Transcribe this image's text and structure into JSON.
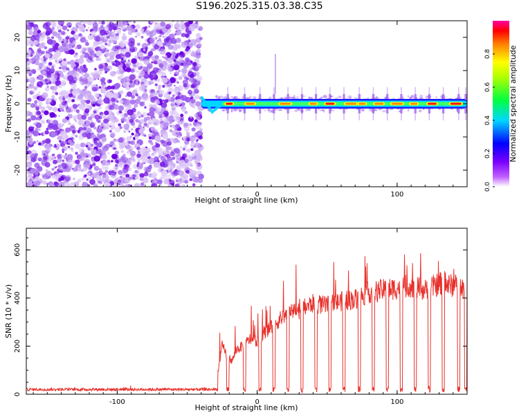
{
  "figure_title": "S196.2025.315.03.38.C35",
  "chart_data": [
    {
      "type": "heatmap",
      "title": "S196.2025.315.03.38.C35",
      "xlabel": "Height of straight line (km)",
      "ylabel": "Frequency (Hz)",
      "xlim": [
        -165,
        150
      ],
      "ylim": [
        -25,
        25
      ],
      "x_ticks": [
        -100,
        0,
        100
      ],
      "y_ticks": [
        -20,
        -10,
        0,
        10,
        20
      ],
      "noise_region_x": [
        -165,
        -40
      ],
      "signal_track_freq_hz": 0,
      "signal_onset_km": -40,
      "colorbar": {
        "label": "Normalized spectral amplitude",
        "range": [
          0,
          1
        ],
        "ticks": [
          0.0,
          0.2,
          0.4,
          0.6,
          0.8
        ],
        "colors": [
          "#ffffff",
          "#7a00ff",
          "#0000ff",
          "#00ffff",
          "#00ff00",
          "#ffff00",
          "#ff7f00",
          "#ff0000",
          "#ff00b0"
        ]
      }
    },
    {
      "type": "line",
      "xlabel": "Height of straight line (km)",
      "ylabel": "SNR (10 * v/v)",
      "xlim": [
        -165,
        150
      ],
      "ylim": [
        0,
        690
      ],
      "x_ticks": [
        -100,
        0,
        100
      ],
      "y_ticks": [
        0,
        200,
        400,
        600
      ],
      "color": "#e8302a",
      "noise_floor_before_km": -28,
      "noise_level": 20,
      "series": [
        {
          "name": "SNR",
          "x": [
            -165,
            -140,
            -120,
            -100,
            -80,
            -60,
            -40,
            -30,
            -25,
            -22,
            -18,
            -15,
            -10,
            -5,
            0,
            5,
            10,
            15,
            20,
            30,
            40,
            50,
            60,
            70,
            80,
            90,
            100,
            110,
            120,
            130,
            140,
            150
          ],
          "values": [
            20,
            22,
            20,
            21,
            20,
            22,
            20,
            25,
            220,
            180,
            150,
            200,
            220,
            250,
            240,
            280,
            300,
            330,
            360,
            380,
            410,
            400,
            420,
            430,
            460,
            470,
            480,
            490,
            470,
            500,
            490,
            480
          ]
        }
      ],
      "dropouts_km": [
        -21,
        -9,
        2,
        12,
        22,
        32,
        42,
        52,
        62,
        73,
        83,
        93,
        103,
        113,
        123,
        133,
        144,
        149
      ]
    }
  ]
}
